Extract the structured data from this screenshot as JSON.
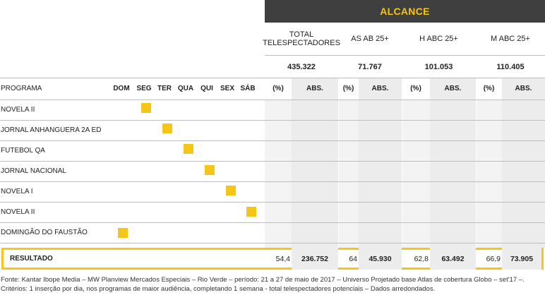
{
  "header": {
    "group_title": "ALCANCE",
    "columns": [
      {
        "label": "TOTAL TELESPECTADORES",
        "total": "435.322"
      },
      {
        "label": "AS AB 25+",
        "total": "71.767"
      },
      {
        "label": "H ABC 25+",
        "total": "101.053"
      },
      {
        "label": "M ABC 25+",
        "total": "110.405"
      }
    ],
    "pct_label": "(%)",
    "abs_label": "ABS."
  },
  "program_header": "PROGRAMA",
  "days": [
    "DOM",
    "SEG",
    "TER",
    "QUA",
    "QUI",
    "SEX",
    "SÁB"
  ],
  "rows": [
    {
      "program": "NOVELA II",
      "day_index": 1
    },
    {
      "program": "JORNAL ANHANGUERA 2A ED",
      "day_index": 2
    },
    {
      "program": "FUTEBOL QA",
      "day_index": 3
    },
    {
      "program": "JORNAL NACIONAL",
      "day_index": 4
    },
    {
      "program": "NOVELA I",
      "day_index": 5
    },
    {
      "program": "NOVELA II",
      "day_index": 6
    },
    {
      "program": "DOMINGÃO DO FAUSTÃO",
      "day_index": 0
    }
  ],
  "result": {
    "label": "RESULTADO",
    "values": [
      {
        "pct": "54,4",
        "abs": "236.752"
      },
      {
        "pct": "64",
        "abs": "45.930"
      },
      {
        "pct": "62,8",
        "abs": "63.492"
      },
      {
        "pct": "66,9",
        "abs": "73.905"
      }
    ]
  },
  "colors": {
    "accent": "#f5c518",
    "header_bg": "#3f3f3f",
    "shade": "#ececec"
  },
  "footnote": "Fonte: Kantar Ibope Media – MW Planview Mercados Especiais – Rio Verde – período: 21 a 27 de maio de 2017 – Universo Projetado base Atlas de cobertura Globo – set'17 –. Critérios: 1 inserção por dia, nos programas de maior audiência, completando 1 semana - total telespectadores potenciais – Dados arredondados."
}
